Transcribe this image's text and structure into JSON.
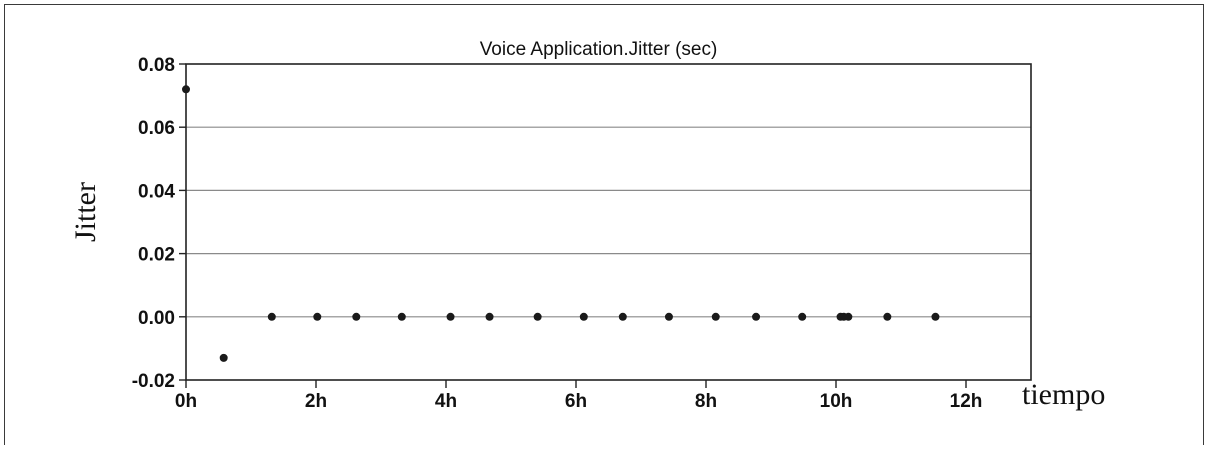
{
  "chart_data": {
    "type": "scatter",
    "title": "Voice Application.Jitter (sec)",
    "xlabel": "tiempo",
    "ylabel": "Jitter",
    "xlim": [
      0,
      13
    ],
    "ylim": [
      -0.02,
      0.08
    ],
    "x_ticks": [
      0,
      2,
      4,
      6,
      8,
      10,
      12
    ],
    "x_tick_labels": [
      "0h",
      "2h",
      "4h",
      "6h",
      "8h",
      "10h",
      "12h"
    ],
    "y_ticks": [
      -0.02,
      0.0,
      0.02,
      0.04,
      0.06,
      0.08
    ],
    "y_tick_labels": [
      "-0.02",
      "0.00",
      "0.02",
      "0.04",
      "0.06",
      "0.08"
    ],
    "grid": "horizontal",
    "legend": "none",
    "marker_color": "#1a1a1a",
    "series": [
      {
        "x": [
          0.0,
          0.58,
          1.32,
          2.02,
          2.62,
          3.32,
          4.07,
          4.67,
          5.41,
          6.12,
          6.72,
          7.43,
          8.15,
          8.77,
          9.48,
          10.07,
          10.12,
          10.19,
          10.79,
          11.53
        ],
        "y": [
          0.072,
          -0.013,
          0.0,
          0.0,
          0.0,
          0.0,
          0.0,
          0.0,
          0.0,
          0.0,
          0.0,
          0.0,
          0.0,
          0.0,
          0.0,
          0.0,
          0.0,
          0.0,
          0.0,
          0.0
        ]
      }
    ]
  }
}
